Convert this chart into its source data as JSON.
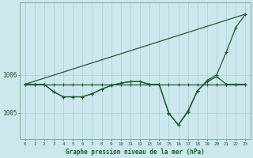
{
  "title": "Graphe pression niveau de la mer (hPa)",
  "background_color": "#cce8ee",
  "grid_color": "#aacccc",
  "line_color": "#1a5c2a",
  "xlim": [
    -0.5,
    23.5
  ],
  "ylim": [
    1004.3,
    1007.9
  ],
  "xticks": [
    0,
    1,
    2,
    3,
    4,
    5,
    6,
    7,
    8,
    9,
    10,
    11,
    12,
    13,
    14,
    15,
    16,
    17,
    18,
    19,
    20,
    21,
    22,
    23
  ],
  "ytick_labels": [
    "1005",
    "1006"
  ],
  "ytick_values": [
    1005.0,
    1006.0
  ],
  "series1_x": [
    0,
    1,
    2,
    3,
    4,
    5,
    6,
    7,
    8,
    9,
    10,
    11,
    12,
    13,
    14,
    15,
    16,
    17,
    18,
    19,
    20,
    21,
    22,
    23
  ],
  "series1_y": [
    1005.75,
    1005.75,
    1005.75,
    1005.75,
    1005.75,
    1005.75,
    1005.75,
    1005.75,
    1005.75,
    1005.75,
    1005.75,
    1005.75,
    1005.75,
    1005.75,
    1005.75,
    1005.75,
    1005.75,
    1005.75,
    1005.75,
    1005.75,
    1005.75,
    1005.75,
    1005.75,
    1005.75
  ],
  "series2_x": [
    0,
    1,
    2,
    3,
    4,
    5,
    6,
    7,
    8,
    9,
    10,
    11,
    12,
    13,
    14,
    15,
    16,
    17,
    18,
    19,
    20,
    21,
    22,
    23
  ],
  "series2_y": [
    1005.75,
    1005.75,
    1005.75,
    1005.55,
    1005.42,
    1005.42,
    1005.42,
    1005.5,
    1005.62,
    1005.72,
    1005.78,
    1005.82,
    1005.82,
    1005.75,
    1005.75,
    1004.98,
    1004.68,
    1005.02,
    1005.58,
    1005.82,
    1005.95,
    1005.75,
    1005.75,
    1005.75
  ],
  "series3_x": [
    0,
    1,
    2,
    3,
    4,
    5,
    6,
    7,
    8,
    9,
    10,
    11,
    12,
    13,
    14,
    15,
    16,
    17,
    18,
    19,
    20,
    21,
    22,
    23
  ],
  "series3_y": [
    1005.75,
    1005.75,
    1005.75,
    1005.55,
    1005.42,
    1005.42,
    1005.42,
    1005.5,
    1005.62,
    1005.72,
    1005.78,
    1005.82,
    1005.82,
    1005.75,
    1005.75,
    1005.0,
    1004.68,
    1005.05,
    1005.58,
    1005.85,
    1006.0,
    1006.6,
    1007.25,
    1007.6
  ],
  "series4_x": [
    0,
    23
  ],
  "series4_y": [
    1005.75,
    1007.6
  ]
}
